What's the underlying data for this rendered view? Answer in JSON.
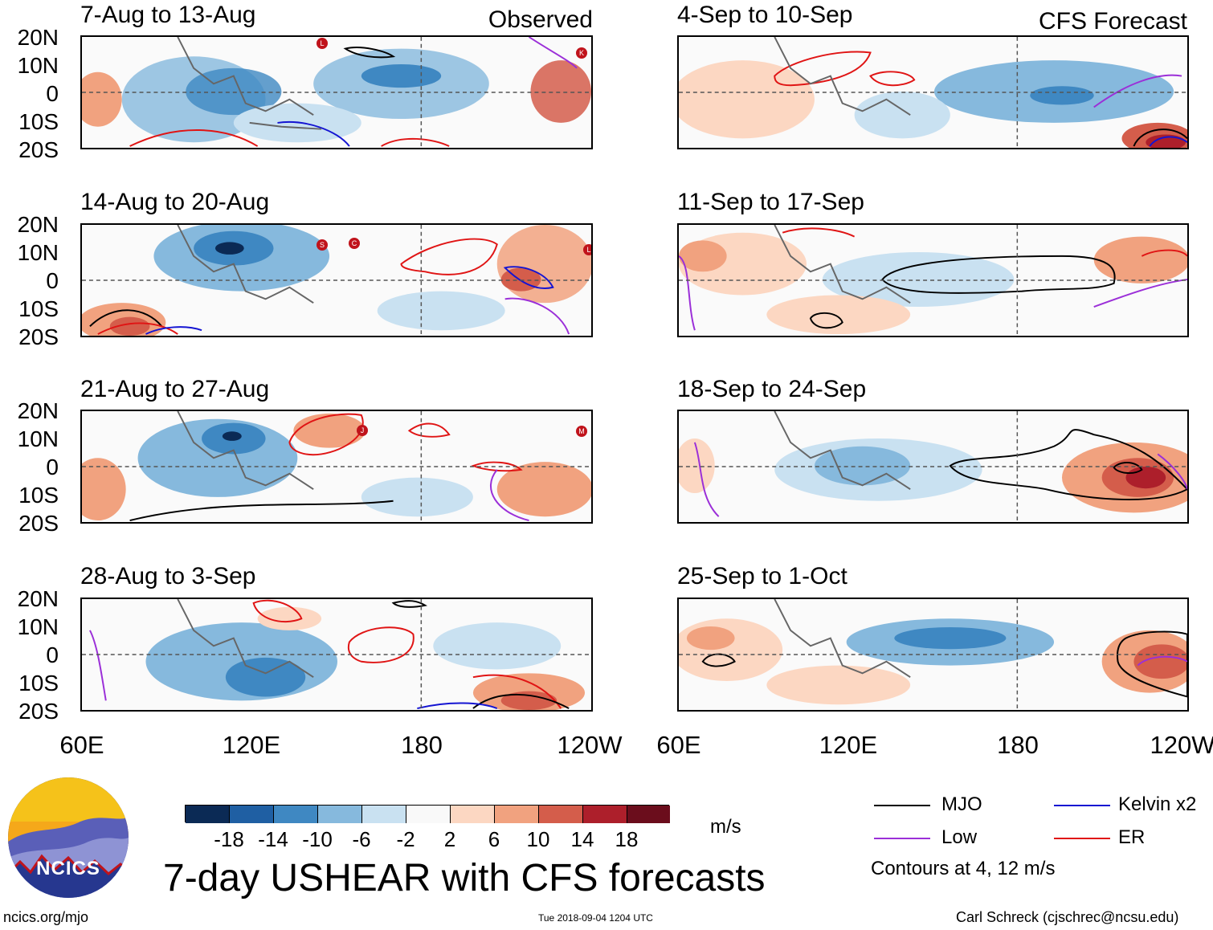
{
  "observed_label": "Observed",
  "forecast_label": "CFS Forecast",
  "lat_labels": [
    "20N",
    "10N",
    "0",
    "10S",
    "20S"
  ],
  "lon_labels": [
    "60E",
    "120E",
    "180",
    "120W"
  ],
  "observed_panels": [
    {
      "title": "7-Aug to 13-Aug",
      "storms": [
        "L",
        "K"
      ]
    },
    {
      "title": "14-Aug to 20-Aug",
      "storms": [
        "S",
        "C",
        "L"
      ]
    },
    {
      "title": "21-Aug to 27-Aug",
      "storms": [
        "J",
        "M"
      ]
    },
    {
      "title": "28-Aug to 3-Sep",
      "storms": []
    }
  ],
  "forecast_panels": [
    {
      "title": "4-Sep to 10-Sep"
    },
    {
      "title": "11-Sep to 17-Sep"
    },
    {
      "title": "18-Sep to 24-Sep"
    },
    {
      "title": "25-Sep to 1-Oct"
    }
  ],
  "colorbar": {
    "tick_labels": [
      "-18",
      "-14",
      "-10",
      "-6",
      "-2",
      "2",
      "6",
      "10",
      "14",
      "18"
    ],
    "colors": [
      "#0b2a55",
      "#1f5fa3",
      "#3f88c2",
      "#86b9dd",
      "#c9e1f1",
      "#f9f9f9",
      "#fcd7c2",
      "#f1a27f",
      "#d45d4b",
      "#ad1f2b",
      "#6b0d1c"
    ],
    "units": "m/s"
  },
  "title": "7-day USHEAR with CFS forecasts",
  "logo_text": "NCICS",
  "legend": {
    "items": [
      {
        "label": "MJO",
        "color": "#000000"
      },
      {
        "label": "Kelvin x2",
        "color": "#1414d2"
      },
      {
        "label": "Low",
        "color": "#9b2fd8"
      },
      {
        "label": "ER",
        "color": "#e01414"
      }
    ],
    "note": "Contours at 4, 12 m/s"
  },
  "footer": {
    "website": "ncics.org/mjo",
    "timestamp": "Tue 2018-09-04 1204 UTC",
    "author": "Carl Schreck (cjschrec@ncsu.edu)"
  }
}
